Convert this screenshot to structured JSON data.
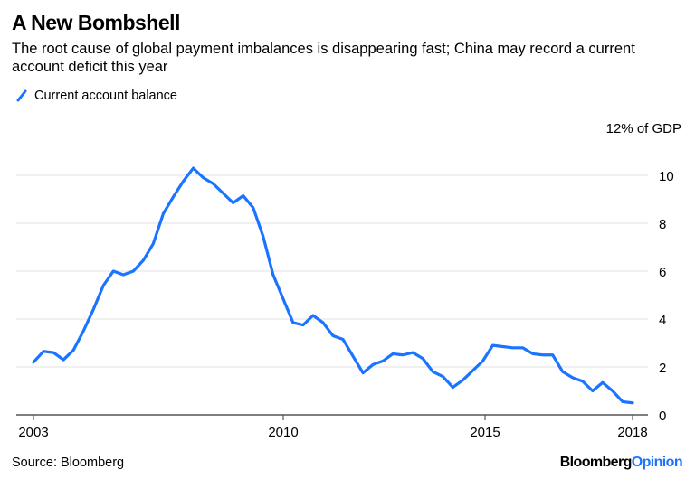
{
  "header": {
    "title": "A New Bombshell",
    "subtitle": "The root cause of global payment imbalances is disappearing fast; China may record a current account deficit this year"
  },
  "legend": {
    "label": "Current account balance",
    "color": "#1a74ff"
  },
  "footer": {
    "source": "Source: Bloomberg",
    "brand_primary": "Bloomberg",
    "brand_secondary": "Opinion"
  },
  "colors": {
    "line": "#1a74ff",
    "grid": "#e6e6e6",
    "axis": "#555555",
    "text": "#000000"
  },
  "chart_data": {
    "type": "line",
    "title": "A New Bombshell",
    "subtitle": "The root cause of global payment imbalances is disappearing fast; China may record a current account deficit this year",
    "xlabel": "",
    "ylabel": "12% of GDP",
    "y_unit_label": "12% of GDP",
    "ylim": [
      0,
      12
    ],
    "yticks": [
      0,
      2,
      4,
      6,
      8,
      10
    ],
    "ytick_labels": [
      "0",
      "2",
      "4",
      "6",
      "8",
      "10"
    ],
    "xlim": [
      2003,
      2018
    ],
    "xticks": [
      2003,
      2010,
      2015,
      2018
    ],
    "xtick_labels": [
      "2003",
      "2010",
      "2015",
      "2018"
    ],
    "grid": true,
    "legend_position": "top-left",
    "series": [
      {
        "name": "Current account balance",
        "values": [
          2.2,
          2.65,
          2.6,
          2.3,
          2.7,
          3.5,
          4.4,
          5.4,
          6.0,
          5.85,
          6.0,
          6.45,
          7.15,
          8.4,
          9.1,
          9.75,
          10.3,
          9.9,
          9.65,
          9.25,
          8.85,
          9.15,
          8.65,
          7.45,
          5.85,
          4.85,
          3.85,
          3.75,
          4.15,
          3.85,
          3.3,
          3.15,
          2.45,
          1.75,
          2.1,
          2.25,
          2.55,
          2.5,
          2.6,
          2.35,
          1.8,
          1.6,
          1.15,
          1.45,
          1.85,
          2.25,
          2.9,
          2.85,
          2.8,
          2.8,
          2.55,
          2.5,
          2.5,
          1.8,
          1.55,
          1.4,
          1.0,
          1.35,
          1.0,
          0.55,
          0.5
        ]
      }
    ]
  }
}
